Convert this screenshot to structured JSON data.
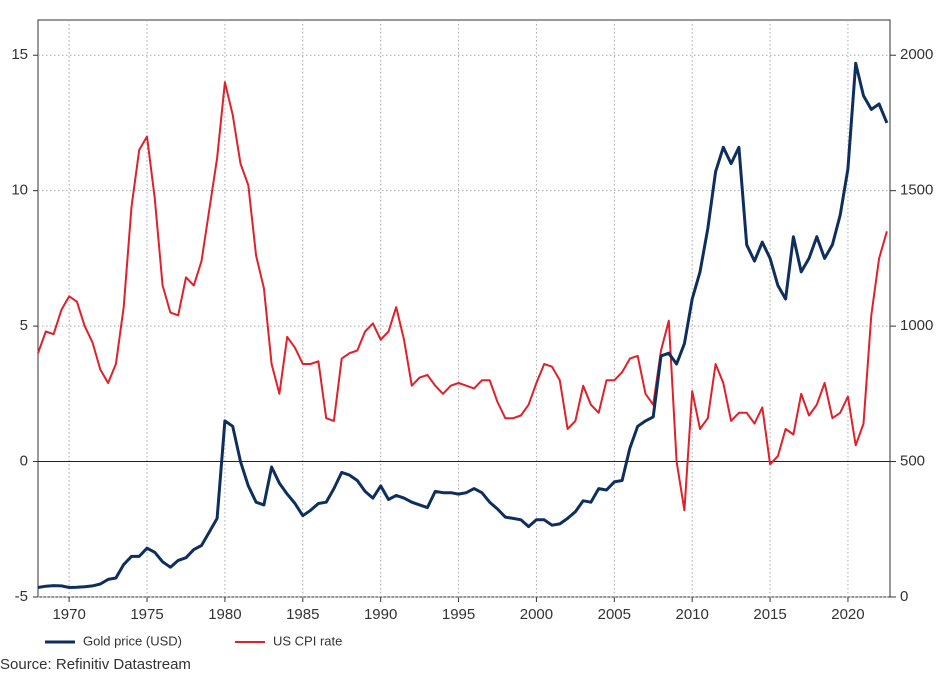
{
  "chart_data": {
    "type": "line",
    "x": [
      1968,
      1968.5,
      1969,
      1969.5,
      1970,
      1970.5,
      1971,
      1971.5,
      1972,
      1972.5,
      1973,
      1973.5,
      1974,
      1974.5,
      1975,
      1975.5,
      1976,
      1976.5,
      1977,
      1977.5,
      1978,
      1978.5,
      1979,
      1979.5,
      1980,
      1980.5,
      1981,
      1981.5,
      1982,
      1982.5,
      1983,
      1983.5,
      1984,
      1984.5,
      1985,
      1985.5,
      1986,
      1986.5,
      1987,
      1987.5,
      1988,
      1988.5,
      1989,
      1989.5,
      1990,
      1990.5,
      1991,
      1991.5,
      1992,
      1992.5,
      1993,
      1993.5,
      1994,
      1994.5,
      1995,
      1995.5,
      1996,
      1996.5,
      1997,
      1997.5,
      1998,
      1998.5,
      1999,
      1999.5,
      2000,
      2000.5,
      2001,
      2001.5,
      2002,
      2002.5,
      2003,
      2003.5,
      2004,
      2004.5,
      2005,
      2005.5,
      2006,
      2006.5,
      2007,
      2007.5,
      2008,
      2008.5,
      2009,
      2009.5,
      2010,
      2010.5,
      2011,
      2011.5,
      2012,
      2012.5,
      2013,
      2013.5,
      2014,
      2014.5,
      2015,
      2015.5,
      2016,
      2016.5,
      2017,
      2017.5,
      2018,
      2018.5,
      2019,
      2019.5,
      2020,
      2020.5,
      2021,
      2021.5,
      2022,
      2022.5
    ],
    "series": [
      {
        "name": "Gold price (USD)",
        "color": "#0e2f5e",
        "axis": "y2",
        "values": [
          35,
          40,
          42,
          41,
          35,
          36,
          38,
          41,
          48,
          65,
          70,
          120,
          150,
          150,
          180,
          165,
          130,
          110,
          135,
          145,
          175,
          190,
          240,
          290,
          650,
          630,
          500,
          410,
          350,
          340,
          480,
          420,
          380,
          345,
          300,
          320,
          345,
          350,
          400,
          460,
          450,
          430,
          390,
          365,
          410,
          360,
          375,
          365,
          350,
          340,
          330,
          390,
          385,
          385,
          380,
          385,
          400,
          385,
          350,
          325,
          295,
          290,
          285,
          260,
          285,
          285,
          265,
          270,
          290,
          315,
          355,
          350,
          400,
          395,
          425,
          430,
          550,
          630,
          650,
          665,
          890,
          900,
          860,
          935,
          1100,
          1200,
          1360,
          1570,
          1660,
          1600,
          1660,
          1300,
          1240,
          1310,
          1250,
          1150,
          1100,
          1330,
          1200,
          1250,
          1330,
          1250,
          1300,
          1410,
          1580,
          1970,
          1850,
          1800,
          1820,
          1750
        ]
      },
      {
        "name": "US CPI rate",
        "color": "#e0202a",
        "values": [
          4.0,
          4.8,
          4.7,
          5.6,
          6.1,
          5.9,
          5.0,
          4.4,
          3.4,
          2.9,
          3.6,
          5.7,
          9.4,
          11.5,
          12.0,
          9.7,
          6.5,
          5.5,
          5.4,
          6.8,
          6.5,
          7.4,
          9.3,
          11.2,
          14.0,
          12.8,
          11.0,
          10.2,
          7.6,
          6.4,
          3.6,
          2.5,
          4.6,
          4.2,
          3.6,
          3.6,
          3.7,
          1.6,
          1.5,
          3.8,
          4.0,
          4.1,
          4.8,
          5.1,
          4.5,
          4.8,
          5.7,
          4.5,
          2.8,
          3.1,
          3.2,
          2.8,
          2.5,
          2.8,
          2.9,
          2.8,
          2.7,
          3.0,
          3.0,
          2.2,
          1.6,
          1.6,
          1.7,
          2.1,
          2.9,
          3.6,
          3.5,
          3.0,
          1.2,
          1.5,
          2.8,
          2.1,
          1.8,
          3.0,
          3.0,
          3.3,
          3.8,
          3.9,
          2.5,
          2.1,
          4.1,
          5.2,
          0.0,
          -1.8,
          2.6,
          1.2,
          1.6,
          3.6,
          2.9,
          1.5,
          1.8,
          1.8,
          1.4,
          2.0,
          -0.1,
          0.2,
          1.2,
          1.0,
          2.5,
          1.7,
          2.1,
          2.9,
          1.6,
          1.8,
          2.4,
          0.6,
          1.4,
          5.4,
          7.5,
          8.5
        ]
      }
    ],
    "xlim": [
      1968,
      2022.7
    ],
    "xticks": [
      1970,
      1975,
      1980,
      1985,
      1990,
      1995,
      2000,
      2005,
      2010,
      2015,
      2020
    ],
    "ylim": [
      -5,
      16.3
    ],
    "yticks": [
      -5,
      0,
      5,
      10,
      15
    ],
    "y2lim": [
      0,
      2130
    ],
    "y2ticks": [
      0,
      500,
      1000,
      1500,
      2000
    ],
    "grid": true,
    "source": "Source: Refinitiv Datastream"
  }
}
